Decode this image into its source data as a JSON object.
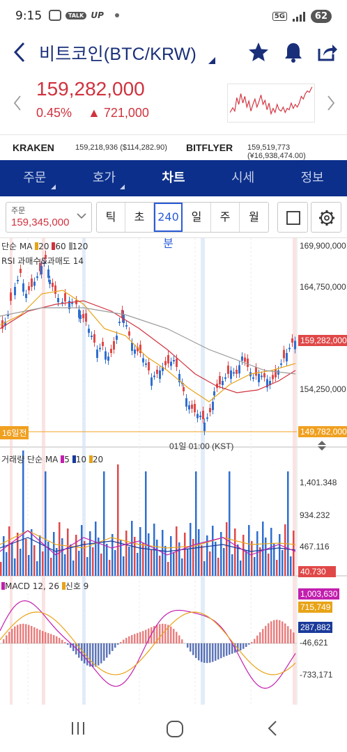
{
  "status": {
    "time": "9:15",
    "talk": "TALK",
    "up": "UP",
    "network": "5G",
    "battery": "62"
  },
  "header": {
    "title": "비트코인(BTC/KRW)"
  },
  "price": {
    "current": "159,282,000",
    "change_pct": "0.45%",
    "change_abs": "▲ 721,000",
    "color_up": "#d0323e"
  },
  "exchanges": [
    {
      "name": "KRAKEN",
      "value": "159,218,936 ($114,282.90)"
    },
    {
      "name": "BITFLYER",
      "value": "159,519,773 (¥16,938,474.00)"
    }
  ],
  "tabs": [
    {
      "label": "주문",
      "has_menu": true
    },
    {
      "label": "호가",
      "has_menu": true
    },
    {
      "label": "차트",
      "active": true
    },
    {
      "label": "시세"
    },
    {
      "label": "정보"
    }
  ],
  "toolbar": {
    "order_label": "주문",
    "order_value": "159,345,000",
    "periods": [
      "틱",
      "초",
      "240분",
      "일",
      "주",
      "월"
    ],
    "selected_period": "240분"
  },
  "chart": {
    "price_legend_prefix": "단순 MA",
    "ma_labels": [
      "20",
      "60",
      "120"
    ],
    "ma_colors": [
      "#e8a317",
      "#d0323e",
      "#9a9a9a"
    ],
    "rsi_label": "RSI 과매수&과매도 14",
    "price_axis": [
      "169,900,000",
      "164,750,000",
      "154,250,000"
    ],
    "current_price_tag": "159,282,000",
    "low_price_tag": "149,782,000",
    "low_label": "16일전",
    "time_label": "01일 01:00 (KST)",
    "volume_legend_prefix": "거래량 단순 MA",
    "volume_ma_labels": [
      "5",
      "10",
      "20"
    ],
    "volume_ma_colors": [
      "#c21fae",
      "#1a3a9a",
      "#e8a317"
    ],
    "volume_axis": [
      "1,401.348",
      "934.232",
      "467.116"
    ],
    "current_volume_tag": "40.730",
    "macd_legend": "MACD 12, 26",
    "macd_signal_legend": "신호 9",
    "macd_axis": [
      "-46,621",
      "-733,171"
    ],
    "macd_tags": [
      "1,003,630",
      "715,749",
      "287,882"
    ],
    "macd_tag_colors": [
      "#c21fae",
      "#e8a317",
      "#1a3a9a"
    ]
  }
}
